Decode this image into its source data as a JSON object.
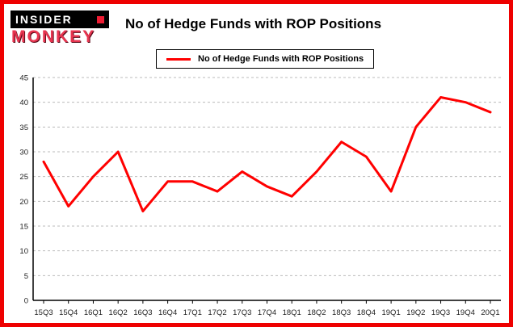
{
  "branding": {
    "logo_line1": "INSIDER",
    "logo_line2": "MONKEY"
  },
  "header": {
    "title": "No of Hedge Funds with ROP Positions"
  },
  "legend": {
    "label": "No of Hedge Funds with ROP Positions"
  },
  "colors": {
    "line": "#ff0000",
    "frame_border": "#ee0000",
    "grid": "#bbbbbb",
    "axis": "#000000"
  },
  "chart_data": {
    "type": "line",
    "title": "No of Hedge Funds with ROP Positions",
    "categories": [
      "15Q3",
      "15Q4",
      "16Q1",
      "16Q2",
      "16Q3",
      "16Q4",
      "17Q1",
      "17Q2",
      "17Q3",
      "17Q4",
      "18Q1",
      "18Q2",
      "18Q3",
      "18Q4",
      "19Q1",
      "19Q2",
      "19Q3",
      "19Q4",
      "20Q1"
    ],
    "values": [
      28,
      19,
      25,
      30,
      18,
      24,
      24,
      22,
      26,
      23,
      21,
      26,
      32,
      29,
      22,
      35,
      41,
      40,
      38
    ],
    "series_name": "No of Hedge Funds with ROP Positions",
    "xlabel": "",
    "ylabel": "",
    "ylim": [
      0,
      45
    ],
    "yticks": [
      0,
      5,
      10,
      15,
      20,
      25,
      30,
      35,
      40,
      45
    ],
    "grid": "horizontal-dashed",
    "legend_position": "top-left"
  }
}
